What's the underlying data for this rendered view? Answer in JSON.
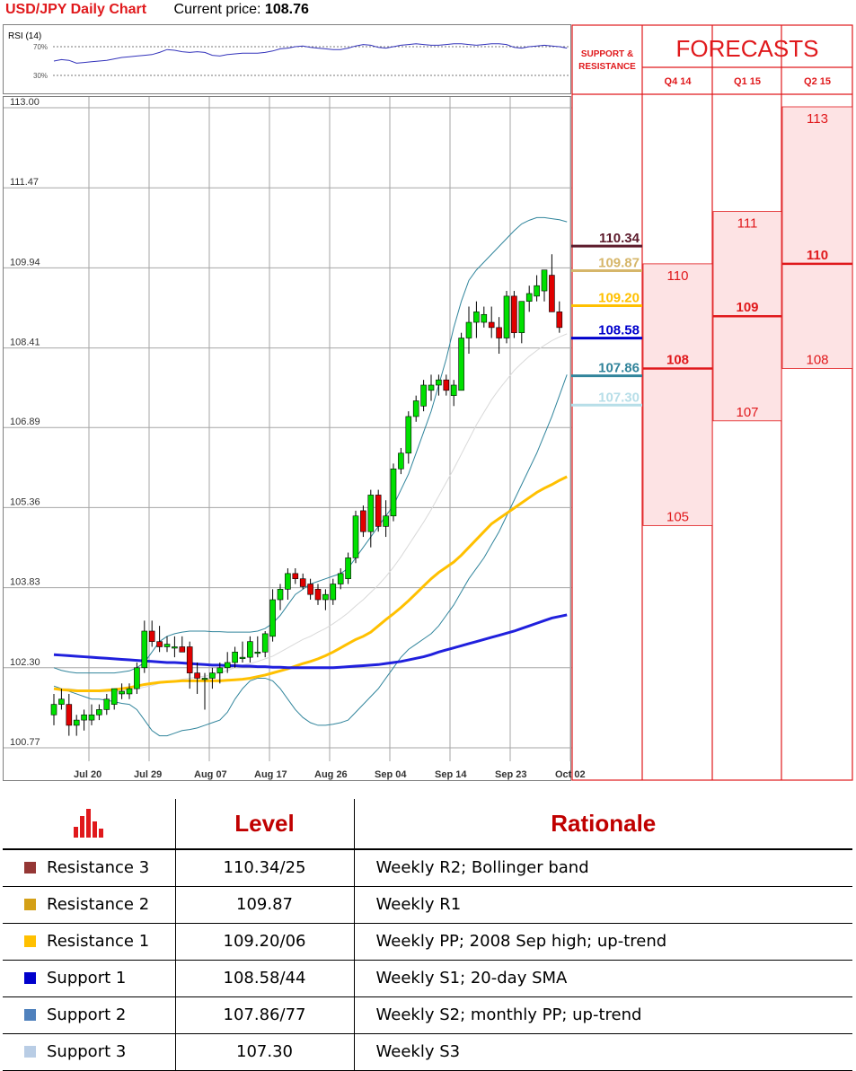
{
  "header": {
    "title": "USD/JPY Daily Chart",
    "current_price_label": "Current price:",
    "current_price": "108.76"
  },
  "rsi": {
    "label": "RSI (14)",
    "level_high": "70%",
    "level_low": "30%"
  },
  "chart_data": {
    "type": "candlestick",
    "title": "USD/JPY Daily Chart",
    "ylim": [
      100.2,
      113.0
    ],
    "y_ticks": [
      "113.00",
      "111.47",
      "109.94",
      "108.41",
      "106.89",
      "105.36",
      "103.83",
      "102.30",
      "100.77"
    ],
    "x_ticks": [
      "Jul 20",
      "Jul 29",
      "Aug 07",
      "Aug 17",
      "Aug 26",
      "Sep 04",
      "Sep 14",
      "Sep 23",
      "Oct 02"
    ],
    "candles": [
      {
        "o": 101.4,
        "h": 101.8,
        "l": 101.2,
        "c": 101.6
      },
      {
        "o": 101.6,
        "h": 101.9,
        "l": 101.5,
        "c": 101.7
      },
      {
        "o": 101.6,
        "h": 101.8,
        "l": 101.0,
        "c": 101.2
      },
      {
        "o": 101.2,
        "h": 101.4,
        "l": 101.0,
        "c": 101.3
      },
      {
        "o": 101.3,
        "h": 101.5,
        "l": 101.1,
        "c": 101.4
      },
      {
        "o": 101.3,
        "h": 101.6,
        "l": 101.2,
        "c": 101.4
      },
      {
        "o": 101.4,
        "h": 101.6,
        "l": 101.3,
        "c": 101.5
      },
      {
        "o": 101.5,
        "h": 101.8,
        "l": 101.4,
        "c": 101.7
      },
      {
        "o": 101.6,
        "h": 101.9,
        "l": 101.5,
        "c": 101.9
      },
      {
        "o": 101.8,
        "h": 102.0,
        "l": 101.7,
        "c": 101.85
      },
      {
        "o": 101.8,
        "h": 102.0,
        "l": 101.7,
        "c": 101.9
      },
      {
        "o": 101.9,
        "h": 102.4,
        "l": 101.8,
        "c": 102.3
      },
      {
        "o": 102.3,
        "h": 103.2,
        "l": 102.2,
        "c": 103.0
      },
      {
        "o": 103.0,
        "h": 103.2,
        "l": 102.7,
        "c": 102.8
      },
      {
        "o": 102.8,
        "h": 103.1,
        "l": 102.6,
        "c": 102.7
      },
      {
        "o": 102.7,
        "h": 102.9,
        "l": 102.6,
        "c": 102.75
      },
      {
        "o": 102.7,
        "h": 102.9,
        "l": 102.5,
        "c": 102.7
      },
      {
        "o": 102.7,
        "h": 102.9,
        "l": 102.6,
        "c": 102.6
      },
      {
        "o": 102.7,
        "h": 102.8,
        "l": 101.9,
        "c": 102.2
      },
      {
        "o": 102.2,
        "h": 102.4,
        "l": 101.8,
        "c": 102.1
      },
      {
        "o": 102.1,
        "h": 102.2,
        "l": 101.5,
        "c": 102.1
      },
      {
        "o": 102.1,
        "h": 102.3,
        "l": 101.9,
        "c": 102.2
      },
      {
        "o": 102.2,
        "h": 102.4,
        "l": 102.0,
        "c": 102.3
      },
      {
        "o": 102.3,
        "h": 102.6,
        "l": 102.2,
        "c": 102.4
      },
      {
        "o": 102.4,
        "h": 102.7,
        "l": 102.3,
        "c": 102.6
      },
      {
        "o": 102.5,
        "h": 102.8,
        "l": 102.4,
        "c": 102.5
      },
      {
        "o": 102.5,
        "h": 102.9,
        "l": 102.4,
        "c": 102.8
      },
      {
        "o": 102.6,
        "h": 102.9,
        "l": 102.5,
        "c": 102.6
      },
      {
        "o": 102.6,
        "h": 103.0,
        "l": 102.5,
        "c": 102.95
      },
      {
        "o": 102.9,
        "h": 103.8,
        "l": 102.8,
        "c": 103.6
      },
      {
        "o": 103.6,
        "h": 103.9,
        "l": 103.4,
        "c": 103.8
      },
      {
        "o": 103.8,
        "h": 104.2,
        "l": 103.6,
        "c": 104.1
      },
      {
        "o": 104.1,
        "h": 104.2,
        "l": 103.9,
        "c": 104.0
      },
      {
        "o": 104.0,
        "h": 104.1,
        "l": 103.8,
        "c": 103.85
      },
      {
        "o": 103.9,
        "h": 104.0,
        "l": 103.6,
        "c": 103.7
      },
      {
        "o": 103.8,
        "h": 103.9,
        "l": 103.5,
        "c": 103.6
      },
      {
        "o": 103.6,
        "h": 103.8,
        "l": 103.4,
        "c": 103.7
      },
      {
        "o": 103.6,
        "h": 104.0,
        "l": 103.5,
        "c": 103.9
      },
      {
        "o": 103.9,
        "h": 104.2,
        "l": 103.8,
        "c": 104.1
      },
      {
        "o": 104.0,
        "h": 104.5,
        "l": 103.9,
        "c": 104.4
      },
      {
        "o": 104.4,
        "h": 105.3,
        "l": 104.3,
        "c": 105.2
      },
      {
        "o": 105.3,
        "h": 105.4,
        "l": 104.8,
        "c": 104.9
      },
      {
        "o": 104.9,
        "h": 105.7,
        "l": 104.6,
        "c": 105.6
      },
      {
        "o": 105.6,
        "h": 105.7,
        "l": 104.9,
        "c": 105.0
      },
      {
        "o": 105.0,
        "h": 105.5,
        "l": 104.8,
        "c": 105.2
      },
      {
        "o": 105.2,
        "h": 106.2,
        "l": 105.1,
        "c": 106.1
      },
      {
        "o": 106.1,
        "h": 106.5,
        "l": 106.0,
        "c": 106.4
      },
      {
        "o": 106.4,
        "h": 107.2,
        "l": 106.2,
        "c": 107.1
      },
      {
        "o": 107.1,
        "h": 107.5,
        "l": 107.0,
        "c": 107.4
      },
      {
        "o": 107.3,
        "h": 107.8,
        "l": 107.2,
        "c": 107.7
      },
      {
        "o": 107.6,
        "h": 107.9,
        "l": 107.4,
        "c": 107.7
      },
      {
        "o": 107.7,
        "h": 107.9,
        "l": 107.5,
        "c": 107.8
      },
      {
        "o": 107.8,
        "h": 107.9,
        "l": 107.5,
        "c": 107.6
      },
      {
        "o": 107.5,
        "h": 107.8,
        "l": 107.3,
        "c": 107.7
      },
      {
        "o": 107.6,
        "h": 108.7,
        "l": 107.6,
        "c": 108.6
      },
      {
        "o": 108.6,
        "h": 109.2,
        "l": 108.3,
        "c": 108.9
      },
      {
        "o": 108.9,
        "h": 109.3,
        "l": 108.6,
        "c": 109.1
      },
      {
        "o": 108.9,
        "h": 109.2,
        "l": 108.8,
        "c": 109.05
      },
      {
        "o": 108.9,
        "h": 109.2,
        "l": 108.6,
        "c": 108.8
      },
      {
        "o": 108.8,
        "h": 109.0,
        "l": 108.3,
        "c": 108.6
      },
      {
        "o": 108.6,
        "h": 109.5,
        "l": 108.5,
        "c": 109.4
      },
      {
        "o": 109.4,
        "h": 109.5,
        "l": 108.6,
        "c": 108.7
      },
      {
        "o": 108.7,
        "h": 109.3,
        "l": 108.5,
        "c": 109.3
      },
      {
        "o": 109.3,
        "h": 109.6,
        "l": 109.1,
        "c": 109.45
      },
      {
        "o": 109.4,
        "h": 109.8,
        "l": 109.3,
        "c": 109.6
      },
      {
        "o": 109.5,
        "h": 109.9,
        "l": 109.3,
        "c": 109.9
      },
      {
        "o": 109.8,
        "h": 110.2,
        "l": 109.1,
        "c": 109.1
      },
      {
        "o": 109.1,
        "h": 109.3,
        "l": 108.7,
        "c": 108.8
      }
    ],
    "ma_slow": [
      102.55,
      102.54,
      102.53,
      102.52,
      102.51,
      102.5,
      102.49,
      102.48,
      102.47,
      102.46,
      102.45,
      102.44,
      102.43,
      102.42,
      102.41,
      102.4,
      102.4,
      102.39,
      102.38,
      102.37,
      102.36,
      102.35,
      102.35,
      102.34,
      102.34,
      102.33,
      102.33,
      102.32,
      102.32,
      102.31,
      102.31,
      102.3,
      102.3,
      102.3,
      102.3,
      102.3,
      102.3,
      102.3,
      102.31,
      102.32,
      102.33,
      102.34,
      102.35,
      102.36,
      102.38,
      102.4,
      102.42,
      102.45,
      102.48,
      102.51,
      102.55,
      102.6,
      102.64,
      102.68,
      102.72,
      102.76,
      102.8,
      102.84,
      102.88,
      102.92,
      102.96,
      103.0,
      103.05,
      103.1,
      103.15,
      103.2,
      103.25,
      103.28,
      103.31
    ],
    "ma_mid": [
      101.9,
      101.88,
      101.87,
      101.86,
      101.86,
      101.86,
      101.86,
      101.87,
      101.88,
      101.9,
      101.92,
      101.95,
      101.98,
      102.0,
      102.02,
      102.03,
      102.04,
      102.05,
      102.05,
      102.05,
      102.05,
      102.05,
      102.05,
      102.06,
      102.07,
      102.08,
      102.1,
      102.13,
      102.16,
      102.2,
      102.24,
      102.28,
      102.33,
      102.38,
      102.42,
      102.47,
      102.53,
      102.6,
      102.68,
      102.76,
      102.84,
      102.9,
      102.98,
      103.1,
      103.22,
      103.33,
      103.45,
      103.58,
      103.72,
      103.86,
      104.0,
      104.12,
      104.22,
      104.32,
      104.45,
      104.6,
      104.75,
      104.9,
      105.05,
      105.15,
      105.25,
      105.35,
      105.45,
      105.55,
      105.65,
      105.73,
      105.8,
      105.88,
      105.95
    ],
    "bb_upper": [
      102.3,
      102.25,
      102.22,
      102.2,
      102.2,
      102.2,
      102.2,
      102.2,
      102.2,
      102.22,
      102.24,
      102.3,
      102.4,
      102.6,
      102.8,
      102.9,
      102.95,
      102.98,
      103.0,
      103.0,
      103.0,
      102.99,
      102.99,
      102.98,
      102.98,
      102.98,
      102.98,
      103.0,
      103.05,
      103.15,
      103.3,
      103.5,
      103.7,
      103.8,
      103.9,
      103.95,
      104.0,
      104.05,
      104.1,
      104.2,
      104.4,
      104.6,
      104.8,
      105.0,
      105.2,
      105.4,
      105.7,
      106.0,
      106.4,
      106.8,
      107.2,
      107.7,
      108.2,
      108.8,
      109.3,
      109.7,
      109.9,
      110.05,
      110.2,
      110.35,
      110.5,
      110.65,
      110.78,
      110.85,
      110.9,
      110.9,
      110.88,
      110.86,
      110.82
    ],
    "bb_lower": [
      101.95,
      101.9,
      101.85,
      101.8,
      101.75,
      101.7,
      101.7,
      101.68,
      101.65,
      101.62,
      101.6,
      101.5,
      101.3,
      101.1,
      101.0,
      101.0,
      101.05,
      101.1,
      101.12,
      101.15,
      101.2,
      101.25,
      101.3,
      101.45,
      101.7,
      101.9,
      102.05,
      102.1,
      102.1,
      102.05,
      101.9,
      101.7,
      101.5,
      101.35,
      101.25,
      101.2,
      101.2,
      101.22,
      101.25,
      101.3,
      101.45,
      101.6,
      101.75,
      101.9,
      102.1,
      102.3,
      102.5,
      102.65,
      102.75,
      102.85,
      102.95,
      103.1,
      103.3,
      103.5,
      103.75,
      104.0,
      104.2,
      104.4,
      104.65,
      104.9,
      105.2,
      105.5,
      105.8,
      106.1,
      106.4,
      106.75,
      107.1,
      107.5,
      107.9
    ],
    "sma20": [
      101.9,
      101.9,
      101.9,
      101.88,
      101.86,
      101.85,
      101.84,
      101.84,
      101.85,
      101.86,
      101.88,
      101.9,
      101.93,
      101.96,
      102.0,
      102.02,
      102.05,
      102.08,
      102.1,
      102.12,
      102.14,
      102.16,
      102.2,
      102.25,
      102.3,
      102.35,
      102.38,
      102.42,
      102.47,
      102.52,
      102.6,
      102.68,
      102.76,
      102.84,
      102.9,
      102.98,
      103.05,
      103.14,
      103.24,
      103.35,
      103.48,
      103.6,
      103.74,
      103.88,
      104.04,
      104.22,
      104.42,
      104.64,
      104.86,
      105.08,
      105.32,
      105.58,
      105.84,
      106.1,
      106.38,
      106.66,
      106.94,
      107.18,
      107.42,
      107.62,
      107.8,
      107.98,
      108.12,
      108.25,
      108.36,
      108.46,
      108.55,
      108.62,
      108.68
    ],
    "rsi_values": [
      50,
      52,
      51,
      47,
      48,
      49,
      50,
      51,
      53,
      55,
      56,
      57,
      58,
      59,
      62,
      66,
      65,
      63,
      62,
      63,
      62,
      58,
      57,
      59,
      60,
      61,
      61,
      61,
      62,
      64,
      67,
      68,
      70,
      71,
      69,
      68,
      67,
      66,
      66,
      68,
      71,
      73,
      72,
      69,
      68,
      70,
      72,
      73,
      74,
      73,
      72,
      72,
      73,
      74,
      74,
      73,
      72,
      73,
      74,
      74,
      73,
      69,
      68,
      70,
      71,
      72,
      71,
      70,
      68
    ]
  },
  "sr_panel": {
    "header": "SUPPORT & RESISTANCE",
    "levels": [
      {
        "label": "110.34",
        "value": 110.34,
        "color": "#5c1a2b"
      },
      {
        "label": "109.87",
        "value": 109.87,
        "color": "#d6b66a"
      },
      {
        "label": "109.20",
        "value": 109.2,
        "color": "#ffc000"
      },
      {
        "label": "108.58",
        "value": 108.58,
        "color": "#0000cc"
      },
      {
        "label": "107.86",
        "value": 107.86,
        "color": "#31849b"
      },
      {
        "label": "107.30",
        "value": 107.3,
        "color": "#b7dee8"
      }
    ]
  },
  "forecasts": {
    "title": "FORECASTS",
    "columns": [
      {
        "label": "Q4 14",
        "high": 110,
        "mid": 108,
        "low": 105,
        "high_label": "110",
        "mid_label": "108",
        "low_label": "105"
      },
      {
        "label": "Q1 15",
        "high": 111,
        "mid": 109,
        "low": 107,
        "high_label": "111",
        "mid_label": "109",
        "low_label": "107"
      },
      {
        "label": "Q2 15",
        "high": 113,
        "mid": 110,
        "low": 108,
        "high_label": "113",
        "mid_label": "110",
        "low_label": "108"
      }
    ]
  },
  "table": {
    "header_level": "Level",
    "header_rationale": "Rationale",
    "rows": [
      {
        "name": "Resistance 3",
        "level": "110.34/25",
        "rationale": "Weekly R2; Bollinger band",
        "color": "#953735"
      },
      {
        "name": "Resistance 2",
        "level": "109.87",
        "rationale": "Weekly R1",
        "color": "#d4a017"
      },
      {
        "name": "Resistance 1",
        "level": "109.20/06",
        "rationale": "Weekly PP; 2008 Sep high; up-trend",
        "color": "#ffc000"
      },
      {
        "name": "Support 1",
        "level": "108.58/44",
        "rationale": "Weekly S1; 20-day SMA",
        "color": "#0000cc"
      },
      {
        "name": "Support 2",
        "level": "107.86/77",
        "rationale": "Weekly S2; monthly PP; up-trend",
        "color": "#4f81bd"
      },
      {
        "name": "Support 3",
        "level": "107.30",
        "rationale": "Weekly S3",
        "color": "#b9cde5"
      }
    ]
  }
}
